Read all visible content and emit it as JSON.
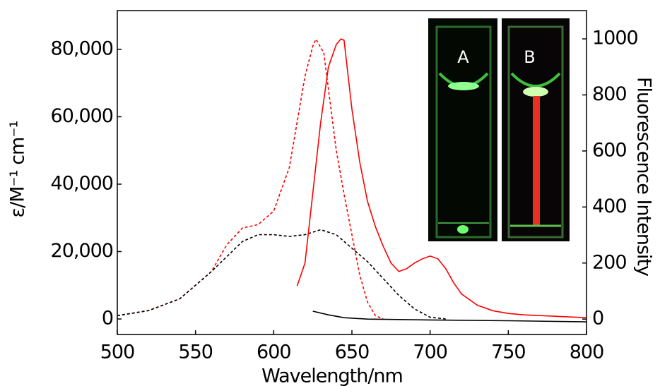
{
  "chart_data": {
    "type": "line",
    "x_label": "Wavelength/nm",
    "y_label": "ε/M⁻¹ cm⁻¹",
    "y2_label": "Fluorescence Intensity",
    "inset_labels": [
      "A",
      "B"
    ],
    "xlim": [
      500,
      800
    ],
    "xticks": [
      500,
      550,
      600,
      650,
      700,
      750,
      800
    ],
    "ylim": [
      -4600,
      91500
    ],
    "yticks": [
      {
        "value": 0,
        "label": "0"
      },
      {
        "value": 20000,
        "label": "20,000"
      },
      {
        "value": 40000,
        "label": "40,000"
      },
      {
        "value": 60000,
        "label": "60,000"
      },
      {
        "value": 80000,
        "label": "80,000"
      }
    ],
    "y2lim": [
      -55,
      1101
    ],
    "y2ticks": [
      0,
      200,
      400,
      600,
      800,
      1000
    ],
    "series": [
      {
        "color": "#ff0000",
        "dashed": true,
        "axis": "y",
        "x": [
          500,
          520,
          540,
          560,
          570,
          580,
          590,
          600,
          610,
          620,
          625,
          627,
          632,
          640,
          645,
          650,
          655,
          660,
          665,
          670
        ],
        "values": [
          1000,
          2500,
          6000,
          14000,
          22000,
          27000,
          28000,
          32000,
          45000,
          72000,
          81000,
          83000,
          79000,
          50000,
          37000,
          25000,
          13000,
          5000,
          1000,
          0
        ]
      },
      {
        "color": "#000000",
        "dashed": true,
        "axis": "y",
        "x": [
          500,
          520,
          540,
          560,
          580,
          590,
          600,
          610,
          620,
          630,
          640,
          650,
          660,
          670,
          680,
          690,
          700,
          710
        ],
        "values": [
          1000,
          2500,
          6000,
          14000,
          23000,
          25000,
          25000,
          24500,
          25000,
          26500,
          25000,
          21000,
          17000,
          12000,
          7000,
          3000,
          500,
          0
        ]
      },
      {
        "color": "#ff0000",
        "dashed": false,
        "axis": "y2",
        "x": [
          615,
          620,
          625,
          630,
          635,
          640,
          643,
          645,
          650,
          655,
          660,
          665,
          670,
          675,
          680,
          685,
          690,
          695,
          700,
          705,
          710,
          715,
          720,
          730,
          740,
          750,
          760,
          780,
          800
        ],
        "values": [
          118,
          200,
          450,
          700,
          900,
          980,
          1000,
          995,
          750,
          560,
          420,
          330,
          260,
          200,
          170,
          180,
          200,
          215,
          225,
          215,
          180,
          130,
          90,
          50,
          30,
          20,
          15,
          10,
          5
        ]
      },
      {
        "color": "#000000",
        "dashed": false,
        "axis": "y2",
        "x": [
          625,
          635,
          645,
          660,
          700,
          750,
          800
        ],
        "values": [
          28,
          15,
          5,
          0,
          -3,
          -6,
          -10
        ]
      }
    ]
  }
}
